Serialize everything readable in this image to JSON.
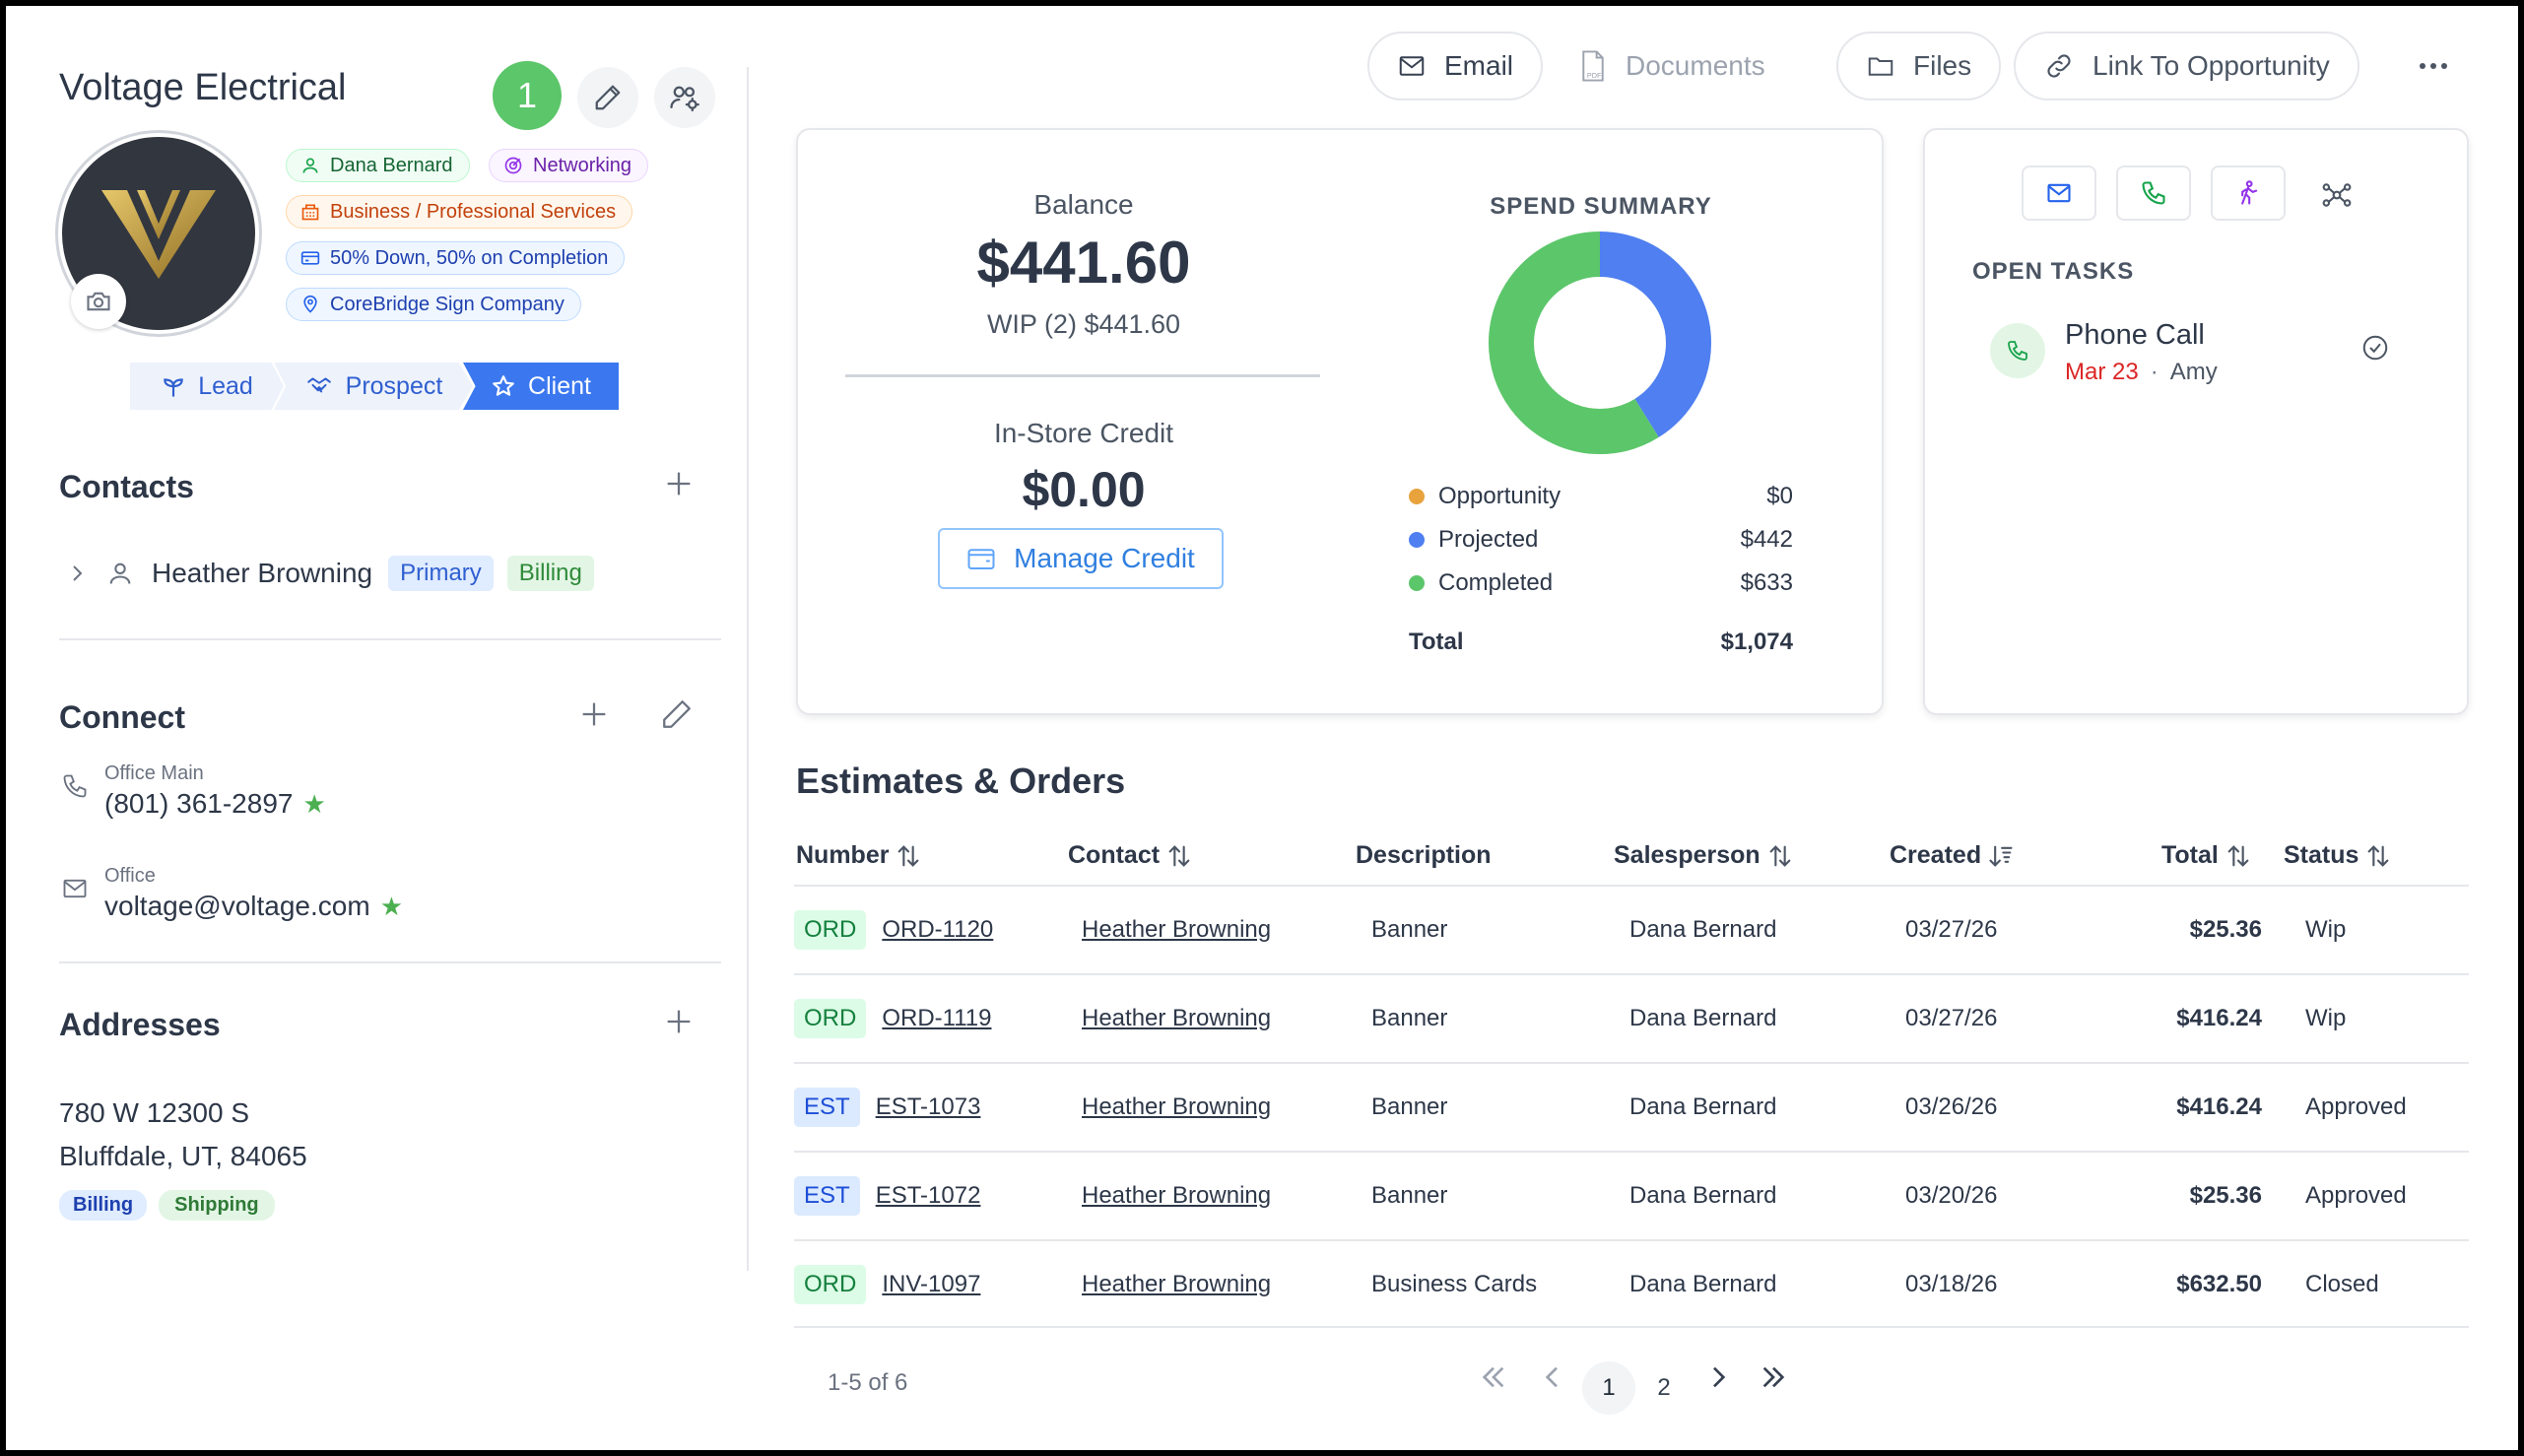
{
  "company": {
    "name": "Voltage Electrical",
    "task_count": "1"
  },
  "tags": {
    "salesperson": "Dana Bernard",
    "source": "Networking",
    "industry": "Business / Professional Services",
    "terms": "50% Down, 50% on Completion",
    "location": "CoreBridge Sign Company"
  },
  "stages": {
    "lead": "Lead",
    "prospect": "Prospect",
    "client": "Client",
    "active": "client"
  },
  "contacts": {
    "title": "Contacts",
    "items": [
      {
        "name": "Heather Browning",
        "badges": [
          "Primary",
          "Billing"
        ]
      }
    ]
  },
  "connect": {
    "title": "Connect",
    "phone_label": "Office Main",
    "phone": "(801) 361-2897",
    "email_label": "Office",
    "email": "voltage@voltage.com"
  },
  "addresses": {
    "title": "Addresses",
    "line1": "780 W 12300 S",
    "line2": "Bluffdale, UT, 84065",
    "badges": [
      "Billing",
      "Shipping"
    ]
  },
  "toolbar": {
    "email": "Email",
    "documents": "Documents",
    "files": "Files",
    "link_opportunity": "Link To Opportunity"
  },
  "balance": {
    "label": "Balance",
    "amount": "$441.60",
    "wip": "WIP (2) $441.60",
    "credit_label": "In-Store Credit",
    "credit_amount": "$0.00",
    "manage_credit": "Manage Credit"
  },
  "spend_summary": {
    "title": "SPEND SUMMARY",
    "items": [
      {
        "label": "Opportunity",
        "value": "$0",
        "color": "#e8a33d"
      },
      {
        "label": "Projected",
        "value": "$442",
        "color": "#4f7ff0"
      },
      {
        "label": "Completed",
        "value": "$633",
        "color": "#5cc66a"
      }
    ],
    "total_label": "Total",
    "total_value": "$1,074"
  },
  "chart_data": {
    "type": "pie",
    "title": "SPEND SUMMARY",
    "categories": [
      "Opportunity",
      "Projected",
      "Completed"
    ],
    "values": [
      0,
      442,
      633
    ],
    "colors": [
      "#e8a33d",
      "#4f7ff0",
      "#5cc66a"
    ]
  },
  "tasks": {
    "title": "OPEN TASKS",
    "items": [
      {
        "name": "Phone Call",
        "date": "Mar 23",
        "assignee": "Amy"
      }
    ]
  },
  "orders": {
    "title": "Estimates & Orders",
    "columns": [
      "Number",
      "Contact",
      "Description",
      "Salesperson",
      "Created",
      "Total",
      "Status"
    ],
    "rows": [
      {
        "type": "ORD",
        "number": "ORD-1120",
        "contact": "Heather Browning",
        "description": "Banner",
        "salesperson": "Dana Bernard",
        "created": "03/27/26",
        "total": "$25.36",
        "status": "Wip"
      },
      {
        "type": "ORD",
        "number": "ORD-1119",
        "contact": "Heather Browning",
        "description": "Banner",
        "salesperson": "Dana Bernard",
        "created": "03/27/26",
        "total": "$416.24",
        "status": "Wip"
      },
      {
        "type": "EST",
        "number": "EST-1073",
        "contact": "Heather Browning",
        "description": "Banner",
        "salesperson": "Dana Bernard",
        "created": "03/26/26",
        "total": "$416.24",
        "status": "Approved"
      },
      {
        "type": "EST",
        "number": "EST-1072",
        "contact": "Heather Browning",
        "description": "Banner",
        "salesperson": "Dana Bernard",
        "created": "03/20/26",
        "total": "$25.36",
        "status": "Approved"
      },
      {
        "type": "ORD",
        "number": "INV-1097",
        "contact": "Heather Browning",
        "description": "Business Cards",
        "salesperson": "Dana Bernard",
        "created": "03/18/26",
        "total": "$632.50",
        "status": "Closed"
      }
    ],
    "range": "1-5 of 6",
    "pages": [
      "1",
      "2"
    ],
    "current_page": "1"
  }
}
